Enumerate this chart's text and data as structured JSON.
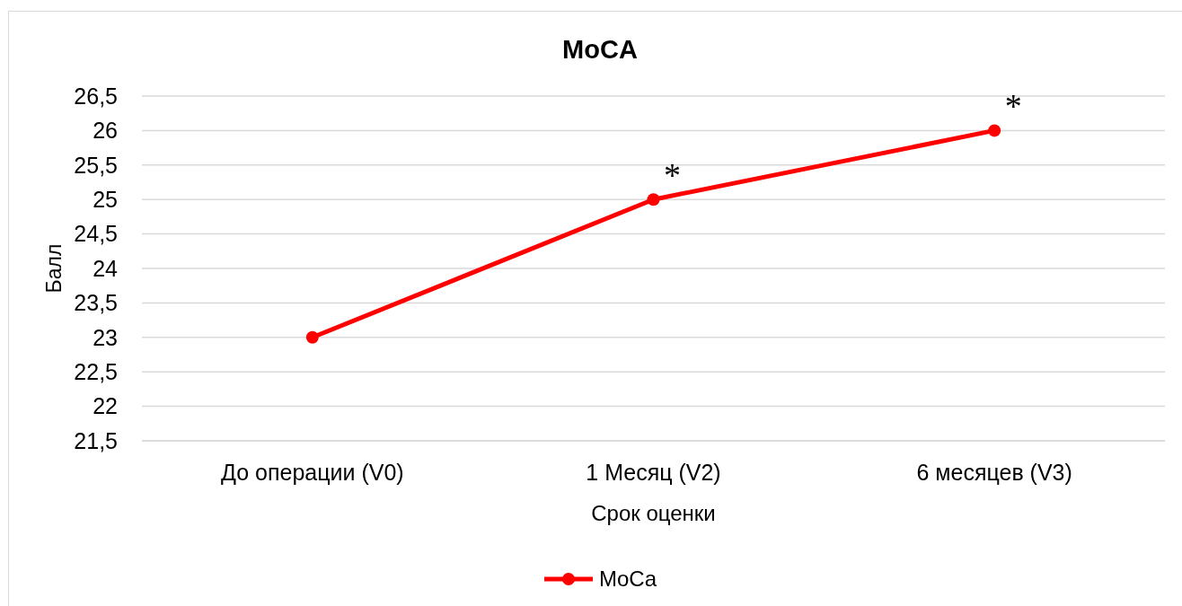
{
  "chart_data": {
    "type": "line",
    "title": "MoCA",
    "xlabel": "Срок оценки",
    "ylabel": "Балл",
    "categories": [
      "До операции (V0)",
      "1 Месяц (V2)",
      "6 месяцев (V3)"
    ],
    "series": [
      {
        "name": "MoCa",
        "color": "#ff0000",
        "values": [
          23,
          25,
          26
        ]
      }
    ],
    "ylim": [
      21.5,
      26.5
    ],
    "yticks": [
      {
        "value": 21.5,
        "label": "21,5"
      },
      22,
      {
        "value": 22.5,
        "label": "22,5"
      },
      23,
      {
        "value": 23.5,
        "label": "23,5"
      },
      24,
      {
        "value": 24.5,
        "label": "24,5"
      },
      25,
      {
        "value": 25.5,
        "label": "25,5"
      },
      26,
      {
        "value": 26.5,
        "label": "26,5"
      }
    ],
    "grid": "y",
    "legend": "bottom",
    "marker": "circle",
    "line_style": "solid",
    "annotations": [
      {
        "text": "*",
        "x": "1 Месяц (V2)",
        "y": 25
      },
      {
        "text": "*",
        "x": "6 месяцев (V3)",
        "y": 26
      }
    ]
  }
}
